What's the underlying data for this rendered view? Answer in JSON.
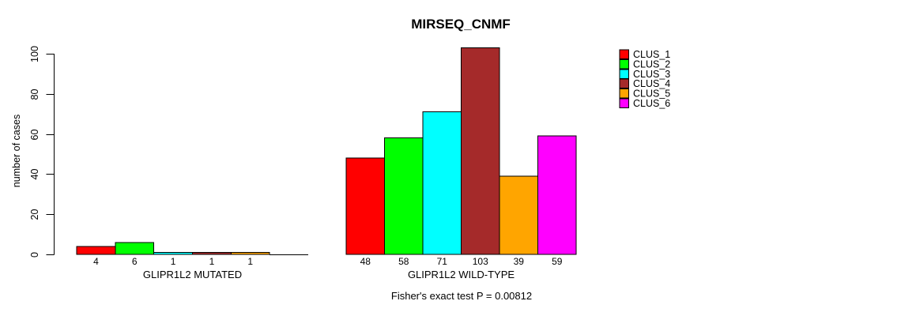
{
  "title": "MIRSEQ_CNMF",
  "chart_data": {
    "type": "bar",
    "title": "MIRSEQ_CNMF",
    "ylabel": "number of cases",
    "xlabel": "",
    "yticks": [
      0,
      20,
      40,
      60,
      80,
      100
    ],
    "ylim": [
      0,
      103
    ],
    "grid": false,
    "legend_position": "right",
    "series": [
      {
        "name": "CLUS_1",
        "color": "#FF0000"
      },
      {
        "name": "CLUS_2",
        "color": "#00FF00"
      },
      {
        "name": "CLUS_3",
        "color": "#00FFFF"
      },
      {
        "name": "CLUS_4",
        "color": "#A52A2A"
      },
      {
        "name": "CLUS_5",
        "color": "#FFA500"
      },
      {
        "name": "CLUS_6",
        "color": "#FF00FF"
      }
    ],
    "groups": [
      {
        "label": "GLIPR1L2 MUTATED",
        "values": [
          4,
          6,
          1,
          1,
          1,
          0
        ]
      },
      {
        "label": "GLIPR1L2 WILD-TYPE",
        "values": [
          48,
          58,
          71,
          103,
          39,
          59
        ]
      }
    ],
    "bar_value_labels": {
      "mutated": [
        "4",
        "6",
        "1",
        "1",
        "1"
      ],
      "wild_type": [
        "48",
        "58",
        "71",
        "103",
        "39",
        "59"
      ]
    },
    "annotation": "Fisher's exact test P = 0.00812",
    "axis_color": "#000000",
    "bar_border_color": "#000000",
    "background_color": "#FFFFFF"
  }
}
